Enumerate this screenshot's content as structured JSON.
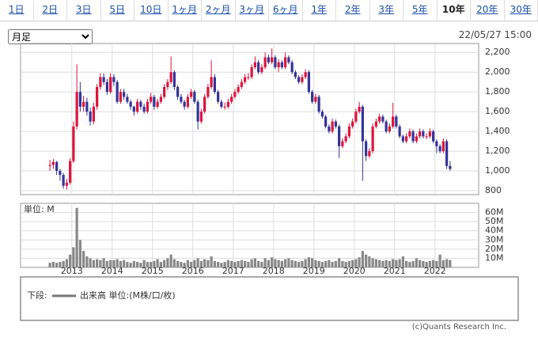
{
  "tabs": {
    "items": [
      "1日",
      "2日",
      "3日",
      "5日",
      "10日",
      "1ヶ月",
      "2ヶ月",
      "3ヶ月",
      "6ヶ月",
      "1年",
      "2年",
      "3年",
      "5年",
      "10年",
      "20年",
      "30年"
    ],
    "selected_index": 13
  },
  "selector": "月足",
  "timestamp": "22/05/27 15:00",
  "chart_data": [
    {
      "type": "candlestick",
      "up_color": "#dc143c",
      "down_color": "#333399",
      "grid": true,
      "categories": [
        null,
        null,
        null,
        null,
        null,
        null,
        null,
        "2013",
        null,
        null,
        null,
        null,
        null,
        null,
        null,
        null,
        null,
        null,
        null,
        "2014",
        null,
        null,
        null,
        null,
        null,
        null,
        null,
        null,
        null,
        null,
        null,
        "2015",
        null,
        null,
        null,
        null,
        null,
        null,
        null,
        null,
        null,
        null,
        null,
        "2016",
        null,
        null,
        null,
        null,
        null,
        null,
        null,
        null,
        null,
        null,
        null,
        "2017",
        null,
        null,
        null,
        null,
        null,
        null,
        null,
        null,
        null,
        null,
        null,
        "2018",
        null,
        null,
        null,
        null,
        null,
        null,
        null,
        null,
        null,
        null,
        null,
        "2019",
        null,
        null,
        null,
        null,
        null,
        null,
        null,
        null,
        null,
        null,
        null,
        "2020",
        null,
        null,
        null,
        null,
        null,
        null,
        null,
        null,
        null,
        null,
        null,
        "2021",
        null,
        null,
        null,
        null,
        null,
        null,
        null,
        null,
        null,
        null,
        null,
        "2022",
        null,
        null,
        null,
        null
      ],
      "candles": [
        [
          1050,
          1110,
          1000,
          1060
        ],
        [
          1060,
          1120,
          1020,
          1090
        ],
        [
          1090,
          1100,
          960,
          1000
        ],
        [
          1000,
          1020,
          900,
          960
        ],
        [
          960,
          980,
          820,
          850
        ],
        [
          850,
          920,
          810,
          880
        ],
        [
          880,
          1130,
          860,
          1100
        ],
        [
          1100,
          1500,
          1080,
          1450
        ],
        [
          1450,
          2080,
          1420,
          1800
        ],
        [
          1800,
          1900,
          1600,
          1650
        ],
        [
          1650,
          1760,
          1600,
          1700
        ],
        [
          1700,
          1740,
          1560,
          1600
        ],
        [
          1600,
          1640,
          1460,
          1500
        ],
        [
          1500,
          1690,
          1470,
          1650
        ],
        [
          1650,
          1880,
          1620,
          1850
        ],
        [
          1850,
          1990,
          1820,
          1950
        ],
        [
          1950,
          1990,
          1870,
          1900
        ],
        [
          1900,
          1930,
          1770,
          1800
        ],
        [
          1800,
          1990,
          1780,
          1950
        ],
        [
          1950,
          1980,
          1860,
          1900
        ],
        [
          1900,
          1920,
          1680,
          1700
        ],
        [
          1700,
          1830,
          1680,
          1800
        ],
        [
          1800,
          1830,
          1720,
          1750
        ],
        [
          1750,
          1780,
          1680,
          1700
        ],
        [
          1700,
          1720,
          1620,
          1650
        ],
        [
          1650,
          1660,
          1560,
          1600
        ],
        [
          1600,
          1730,
          1580,
          1700
        ],
        [
          1700,
          1720,
          1620,
          1650
        ],
        [
          1650,
          1680,
          1580,
          1600
        ],
        [
          1600,
          1730,
          1580,
          1700
        ],
        [
          1700,
          1790,
          1680,
          1750
        ],
        [
          1750,
          1770,
          1620,
          1650
        ],
        [
          1650,
          1730,
          1630,
          1700
        ],
        [
          1700,
          1780,
          1680,
          1750
        ],
        [
          1750,
          1880,
          1730,
          1850
        ],
        [
          1850,
          1930,
          1820,
          1900
        ],
        [
          1900,
          2160,
          1880,
          2000
        ],
        [
          2000,
          2020,
          1820,
          1850
        ],
        [
          1850,
          1870,
          1720,
          1750
        ],
        [
          1750,
          1780,
          1680,
          1700
        ],
        [
          1700,
          1720,
          1620,
          1650
        ],
        [
          1650,
          1780,
          1630,
          1750
        ],
        [
          1750,
          1830,
          1730,
          1800
        ],
        [
          1800,
          1820,
          1680,
          1700
        ],
        [
          1700,
          1720,
          1420,
          1500
        ],
        [
          1500,
          1630,
          1480,
          1600
        ],
        [
          1600,
          1780,
          1580,
          1750
        ],
        [
          1750,
          1880,
          1730,
          1850
        ],
        [
          1850,
          2120,
          1830,
          1950
        ],
        [
          1950,
          1980,
          1780,
          1800
        ],
        [
          1800,
          1820,
          1680,
          1700
        ],
        [
          1700,
          1720,
          1630,
          1650
        ],
        [
          1650,
          1690,
          1620,
          1650
        ],
        [
          1650,
          1730,
          1630,
          1700
        ],
        [
          1700,
          1780,
          1680,
          1750
        ],
        [
          1750,
          1830,
          1730,
          1800
        ],
        [
          1800,
          1880,
          1780,
          1850
        ],
        [
          1850,
          1930,
          1830,
          1900
        ],
        [
          1900,
          1980,
          1880,
          1950
        ],
        [
          1950,
          1990,
          1920,
          1950
        ],
        [
          1950,
          2080,
          1930,
          2050
        ],
        [
          2050,
          2160,
          2030,
          2100
        ],
        [
          2100,
          2120,
          1980,
          2000
        ],
        [
          2000,
          2080,
          1980,
          2050
        ],
        [
          2050,
          2200,
          2030,
          2150
        ],
        [
          2150,
          2180,
          2080,
          2100
        ],
        [
          2100,
          2240,
          2080,
          2150
        ],
        [
          2150,
          2170,
          2030,
          2050
        ],
        [
          2050,
          2130,
          2000,
          2100
        ],
        [
          2100,
          2120,
          2030,
          2050
        ],
        [
          2050,
          2200,
          2030,
          2150
        ],
        [
          2150,
          2170,
          2080,
          2100
        ],
        [
          2100,
          2120,
          1980,
          2000
        ],
        [
          2000,
          2020,
          1930,
          1950
        ],
        [
          1950,
          1970,
          1880,
          1900
        ],
        [
          1900,
          1980,
          1880,
          1950
        ],
        [
          1950,
          2030,
          1930,
          2000
        ],
        [
          2000,
          2020,
          1780,
          1800
        ],
        [
          1800,
          1820,
          1680,
          1700
        ],
        [
          1700,
          1780,
          1680,
          1750
        ],
        [
          1750,
          1770,
          1580,
          1600
        ],
        [
          1600,
          1620,
          1530,
          1550
        ],
        [
          1550,
          1570,
          1430,
          1450
        ],
        [
          1450,
          1470,
          1380,
          1400
        ],
        [
          1400,
          1530,
          1380,
          1500
        ],
        [
          1500,
          1520,
          1430,
          1450
        ],
        [
          1450,
          1470,
          1130,
          1250
        ],
        [
          1250,
          1330,
          1230,
          1300
        ],
        [
          1300,
          1380,
          1280,
          1350
        ],
        [
          1350,
          1480,
          1330,
          1450
        ],
        [
          1450,
          1530,
          1430,
          1500
        ],
        [
          1500,
          1630,
          1480,
          1600
        ],
        [
          1600,
          1700,
          1580,
          1650
        ],
        [
          1650,
          1670,
          900,
          1300
        ],
        [
          1300,
          1320,
          1100,
          1150
        ],
        [
          1150,
          1230,
          1130,
          1200
        ],
        [
          1200,
          1480,
          1180,
          1450
        ],
        [
          1450,
          1530,
          1430,
          1500
        ],
        [
          1500,
          1580,
          1480,
          1550
        ],
        [
          1550,
          1570,
          1480,
          1500
        ],
        [
          1500,
          1520,
          1380,
          1400
        ],
        [
          1400,
          1480,
          1380,
          1450
        ],
        [
          1450,
          1690,
          1430,
          1550
        ],
        [
          1550,
          1570,
          1430,
          1450
        ],
        [
          1450,
          1470,
          1330,
          1350
        ],
        [
          1350,
          1370,
          1280,
          1300
        ],
        [
          1300,
          1380,
          1280,
          1350
        ],
        [
          1350,
          1430,
          1330,
          1400
        ],
        [
          1400,
          1420,
          1280,
          1300
        ],
        [
          1300,
          1380,
          1280,
          1350
        ],
        [
          1350,
          1430,
          1330,
          1400
        ],
        [
          1400,
          1420,
          1330,
          1350
        ],
        [
          1350,
          1380,
          1320,
          1350
        ],
        [
          1350,
          1430,
          1330,
          1400
        ],
        [
          1400,
          1420,
          1280,
          1300
        ],
        [
          1300,
          1320,
          1180,
          1250
        ],
        [
          1250,
          1270,
          1180,
          1200
        ],
        [
          1200,
          1330,
          1180,
          1300
        ],
        [
          1300,
          1320,
          1020,
          1050
        ],
        [
          1050,
          1100,
          1000,
          1020
        ]
      ],
      "ylim": [
        760,
        2290
      ],
      "yticks": [
        800,
        {
          "value": 1000,
          "label": "1,000"
        },
        {
          "value": 1200,
          "label": "1,200"
        },
        {
          "value": 1400,
          "label": "1,400"
        },
        {
          "value": 1600,
          "label": "1,600"
        },
        {
          "value": 1800,
          "label": "1,800"
        },
        {
          "value": 2000,
          "label": "2,000"
        },
        {
          "value": 2200,
          "label": "2,200"
        }
      ]
    },
    {
      "type": "bar",
      "title": "単位: M",
      "color": "#888888",
      "grid": true,
      "values": [
        5,
        6,
        5,
        6,
        7,
        9,
        14,
        22,
        65,
        30,
        18,
        12,
        10,
        8,
        9,
        8,
        10,
        7,
        8,
        8,
        9,
        7,
        8,
        6,
        5,
        7,
        6,
        5,
        8,
        6,
        6,
        7,
        9,
        6,
        8,
        10,
        14,
        9,
        7,
        6,
        5,
        8,
        6,
        8,
        10,
        7,
        9,
        8,
        12,
        7,
        6,
        5,
        6,
        8,
        7,
        6,
        7,
        8,
        7,
        6,
        9,
        10,
        7,
        6,
        10,
        8,
        11,
        9,
        8,
        7,
        9,
        10,
        8,
        7,
        6,
        7,
        9,
        11,
        10,
        8,
        7,
        6,
        7,
        8,
        6,
        7,
        10,
        7,
        6,
        7,
        8,
        9,
        11,
        18,
        14,
        12,
        10,
        9,
        8,
        7,
        8,
        7,
        9,
        8,
        9,
        12,
        7,
        6,
        7,
        10,
        8,
        7,
        6,
        7,
        8,
        7,
        14,
        8,
        9,
        8
      ],
      "ylim": [
        0,
        70
      ],
      "yticks": [
        {
          "value": 10,
          "label": "10M"
        },
        {
          "value": 20,
          "label": "20M"
        },
        {
          "value": 30,
          "label": "30M"
        },
        {
          "value": 40,
          "label": "40M"
        },
        {
          "value": 50,
          "label": "50M"
        },
        {
          "value": 60,
          "label": "60M"
        }
      ]
    }
  ],
  "legend": {
    "prefix": "下段:",
    "label": "出来高 単位:(M株/口/枚)"
  },
  "copyright": "(c)Quants Research Inc."
}
